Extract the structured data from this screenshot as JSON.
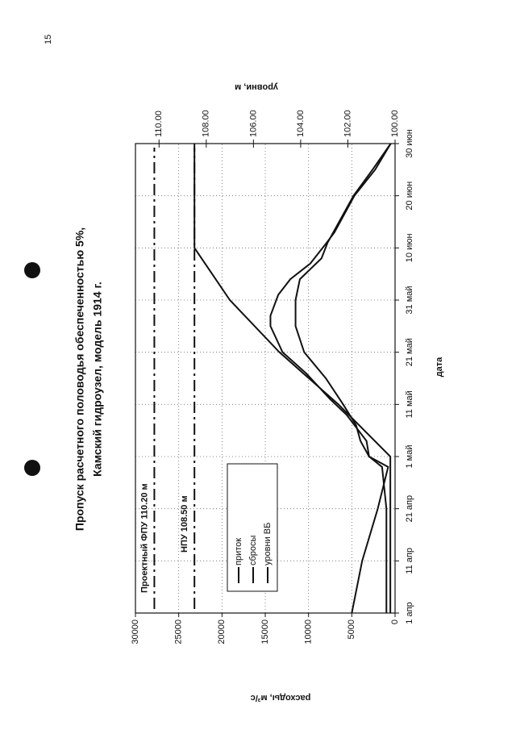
{
  "page_number": "15",
  "chart_data": {
    "type": "line",
    "title": "Пропуск расчетного половодья обеспеченностью 5%,",
    "subtitle": "Камский гидроузел, модель 1914 г.",
    "x_label": "дата",
    "y_label": "расходы, м³/с",
    "y2_label": "уровни, м",
    "xlim": [
      0,
      90
    ],
    "xticks": [
      {
        "value": 0,
        "label": "1 апр"
      },
      {
        "value": 10,
        "label": "11 апр"
      },
      {
        "value": 20,
        "label": "21 апр"
      },
      {
        "value": 30,
        "label": "1 май"
      },
      {
        "value": 40,
        "label": "11 май"
      },
      {
        "value": 50,
        "label": "21 май"
      },
      {
        "value": 60,
        "label": "31 май"
      },
      {
        "value": 70,
        "label": "10 июн"
      },
      {
        "value": 80,
        "label": "20 июн"
      },
      {
        "value": 90,
        "label": "30 июн"
      }
    ],
    "ylim": [
      0,
      30000
    ],
    "yticks": [
      0,
      5000,
      10000,
      15000,
      20000,
      25000,
      30000
    ],
    "y2lim": [
      100,
      111
    ],
    "y2ticks": [
      {
        "value": 100,
        "label": "100.00"
      },
      {
        "value": 102,
        "label": "102.00"
      },
      {
        "value": 104,
        "label": "104.00"
      },
      {
        "value": 106,
        "label": "106.00"
      },
      {
        "value": 108,
        "label": "108.00"
      },
      {
        "value": 110,
        "label": "110.00"
      }
    ],
    "grid": true,
    "legend": "center",
    "series": [
      {
        "name": "приток",
        "color": "#111111",
        "x": [
          0,
          10,
          20,
          28,
          30,
          33,
          38,
          41,
          46,
          50,
          55,
          57,
          61,
          64,
          67,
          71,
          73,
          80,
          85,
          90
        ],
        "values": [
          1000,
          1000,
          1000,
          1500,
          3000,
          3300,
          5600,
          7500,
          10300,
          13000,
          14400,
          14400,
          13500,
          12100,
          9800,
          7900,
          7000,
          4700,
          2300,
          500
        ]
      },
      {
        "name": "сбросы",
        "color": "#111111",
        "x": [
          0,
          10,
          20,
          28,
          30,
          33,
          36,
          40,
          45,
          50,
          55,
          60,
          64,
          68,
          71,
          80,
          85,
          90
        ],
        "values": [
          5000,
          3800,
          2000,
          800,
          3000,
          4000,
          4500,
          6000,
          8000,
          10500,
          11500,
          11500,
          11000,
          8500,
          7800,
          4800,
          2600,
          500
        ]
      },
      {
        "name": "уровни ВБ",
        "color": "#111111",
        "axis": "y2",
        "x": [
          0,
          30,
          40,
          50,
          60,
          70,
          90
        ],
        "values": [
          100.2,
          100.2,
          102.4,
          104.9,
          107,
          108.5,
          108.5
        ]
      }
    ],
    "reference_lines": [
      {
        "label": "Проектный ФПУ 110.20 м",
        "value": 110.2,
        "axis": "y2",
        "color": "#111111"
      },
      {
        "label": "НПУ 108.50 м",
        "value": 108.5,
        "axis": "y2",
        "color": "#111111"
      }
    ]
  }
}
